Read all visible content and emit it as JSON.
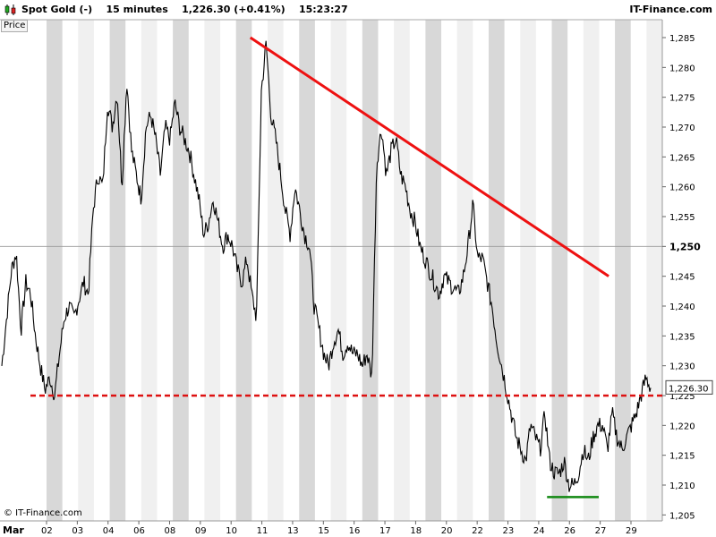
{
  "header": {
    "instrument": "Spot Gold (-)",
    "timeframe": "15 minutes",
    "price_change": "1,226.30 (+0.41%)",
    "time": "15:23:27",
    "brand": "IT-Finance.com"
  },
  "price_label": "Price",
  "watermark": "© IT-Finance.com",
  "colors": {
    "trendline": "#ee1111",
    "support": "#dd1111",
    "low_line": "#118811",
    "band": "#d8d8d8",
    "band_light": "#f0f0f0",
    "series": "#000000"
  },
  "chart_data": {
    "type": "line",
    "title": "Spot Gold (-)",
    "ylim": [
      1204,
      1288
    ],
    "yticks": [
      1205,
      1210,
      1215,
      1220,
      1225,
      1230,
      1235,
      1240,
      1245,
      1250,
      1255,
      1260,
      1265,
      1270,
      1275,
      1280,
      1285
    ],
    "ytick_labels": [
      "1,205",
      "1,210",
      "1,215",
      "1,220",
      "1,225",
      "1,230",
      "1,235",
      "1,240",
      "1,245",
      "1,250",
      "1,255",
      "1,260",
      "1,265",
      "1,270",
      "1,275",
      "1,280",
      "1,285"
    ],
    "y_emphasis": "1,250",
    "last_value": 1226.3,
    "last_label": "1,226.30",
    "x_month_label": "Mar",
    "x_labels": [
      "02",
      "03",
      "04",
      "06",
      "08",
      "09",
      "10",
      "11",
      "13",
      "15",
      "16",
      "17",
      "18",
      "20",
      "22",
      "23",
      "24",
      "26",
      "27",
      "29"
    ],
    "series": [
      {
        "values": [
          1230,
          1238,
          1246,
          1249,
          1236,
          1244,
          1242,
          1235,
          1230,
          1226,
          1228,
          1225,
          1232,
          1238,
          1240,
          1238,
          1241,
          1244,
          1242,
          1256,
          1262,
          1260,
          1274,
          1270,
          1276,
          1260,
          1278,
          1266,
          1262,
          1258,
          1270,
          1272,
          1268,
          1262,
          1270,
          1268,
          1274,
          1270,
          1268,
          1266,
          1262,
          1258,
          1252,
          1254,
          1258,
          1254,
          1250,
          1252,
          1250,
          1246,
          1244,
          1248,
          1242,
          1238,
          1276,
          1284,
          1272,
          1268,
          1262,
          1256,
          1252,
          1260,
          1256,
          1252,
          1250,
          1240,
          1236,
          1232,
          1230,
          1234,
          1236,
          1232,
          1234,
          1232,
          1232,
          1230,
          1232,
          1228,
          1264,
          1270,
          1262,
          1266,
          1268,
          1262,
          1260,
          1256,
          1254,
          1250,
          1248,
          1246,
          1244,
          1242,
          1245,
          1244,
          1243,
          1242,
          1245,
          1250,
          1257,
          1248,
          1248,
          1244,
          1240,
          1234,
          1230,
          1226,
          1222,
          1218,
          1216,
          1214,
          1220,
          1218,
          1216,
          1222,
          1214,
          1212,
          1212,
          1214,
          1210,
          1210,
          1212,
          1216,
          1214,
          1218,
          1220,
          1220,
          1216,
          1222,
          1218,
          1216,
          1218,
          1220,
          1222,
          1225,
          1228,
          1226.3
        ]
      }
    ],
    "trendline": {
      "from": [
        0.378,
        1285
      ],
      "to": [
        0.919,
        1245
      ]
    },
    "support": {
      "value": 1225
    },
    "low_line": {
      "value": 1208,
      "from": 0.826,
      "to": 0.904
    }
  }
}
